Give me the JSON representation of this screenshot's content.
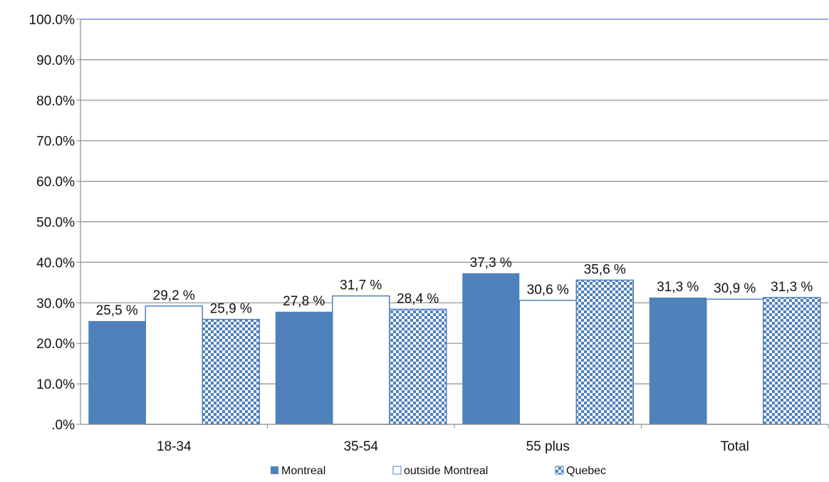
{
  "chart_data": {
    "type": "bar",
    "categories": [
      "18-34",
      "35-54",
      "55 plus",
      "Total"
    ],
    "series": [
      {
        "name": "Montreal",
        "values": [
          25.5,
          27.8,
          37.3,
          31.3
        ],
        "labels": [
          "25,5 %",
          "27,8 %",
          "37,3 %",
          "31,3 %"
        ],
        "color": "#4F81BD",
        "fill": "solid"
      },
      {
        "name": "outside Montreal",
        "values": [
          29.2,
          31.7,
          30.6,
          30.9
        ],
        "labels": [
          "29,2 %",
          "31,7 %",
          "30,6 %",
          "30,9 %"
        ],
        "color": "#4F81BD",
        "fill": "outline"
      },
      {
        "name": "Quebec",
        "values": [
          25.9,
          28.4,
          35.6,
          31.3
        ],
        "labels": [
          "25,9 %",
          "28,4 %",
          "35,6 %",
          "31,3 %"
        ],
        "color": "#4F81BD",
        "fill": "checkerboard"
      }
    ],
    "y_ticks": [
      ".0%",
      "10.0%",
      "20.0%",
      "30.0%",
      "40.0%",
      "50.0%",
      "60.0%",
      "70.0%",
      "80.0%",
      "90.0%",
      "100.0%"
    ],
    "ylim": [
      0,
      100
    ],
    "grid": true,
    "legend_position": "bottom",
    "title": "",
    "xlabel": "",
    "ylabel": ""
  }
}
